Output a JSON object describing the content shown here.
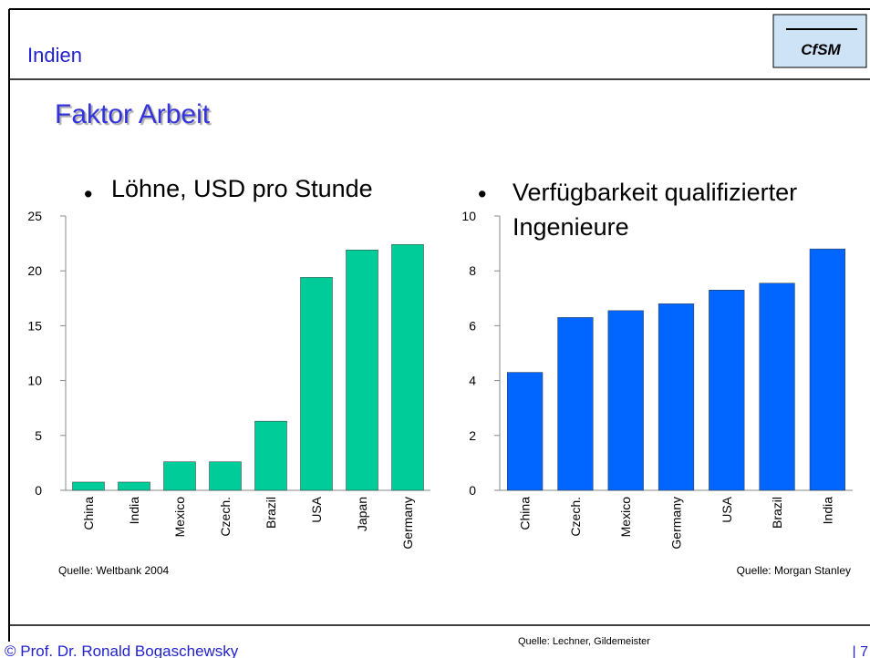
{
  "header": {
    "title": "Indien",
    "logo": "CfSM"
  },
  "heading": "Faktor Arbeit",
  "chart_data": [
    {
      "type": "bar",
      "title": "Löhne, USD pro Stunde",
      "categories": [
        "China",
        "India",
        "Mexico",
        "Czech.",
        "Brazil",
        "USA",
        "Japan",
        "Germany"
      ],
      "values": [
        0.75,
        0.75,
        2.6,
        2.6,
        6.3,
        19.4,
        21.9,
        22.4
      ],
      "color": "#00cc99",
      "ylim": [
        0,
        25
      ],
      "yticks": [
        0,
        5,
        10,
        15,
        20,
        25
      ],
      "source": "Quelle: Weltbank 2004"
    },
    {
      "type": "bar",
      "title": "Verfügbarkeit qualifizierter Ingenieure",
      "categories": [
        "China",
        "Czech.",
        "Mexico",
        "Germany",
        "USA",
        "Brazil",
        "India"
      ],
      "values": [
        4.3,
        6.3,
        6.55,
        6.8,
        7.3,
        7.55,
        8.8
      ],
      "color": "#0066ff",
      "ylim": [
        0,
        10
      ],
      "yticks": [
        0,
        2,
        4,
        6,
        8,
        10
      ],
      "source": "Quelle: Morgan Stanley"
    }
  ],
  "footer": {
    "author": "© Prof. Dr. Ronald Bogaschewsky",
    "source": "Quelle: Lechner, Gildemeister",
    "page": "| 7"
  }
}
